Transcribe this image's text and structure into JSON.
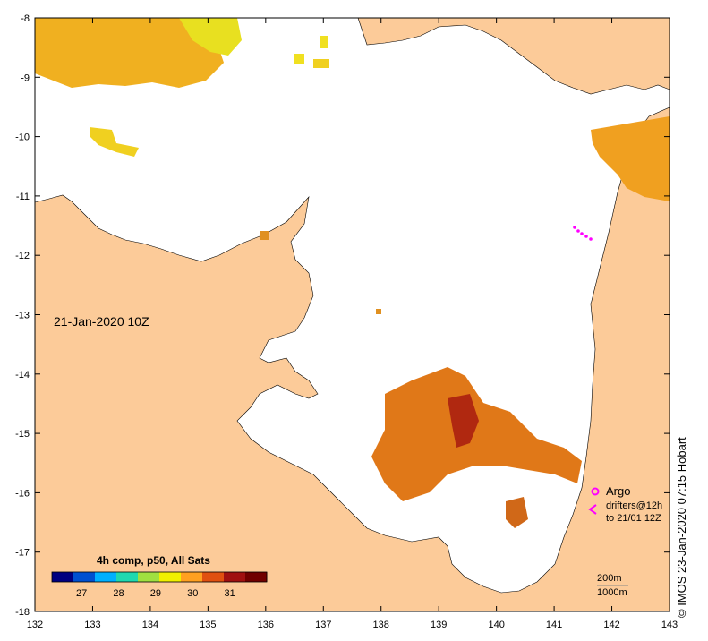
{
  "map": {
    "date_label": "21-Jan-2020 10Z",
    "lon_ticks": [
      "132",
      "133",
      "134",
      "135",
      "136",
      "137",
      "138",
      "139",
      "140",
      "141",
      "142",
      "143"
    ],
    "lat_ticks": [
      "-8",
      "-9",
      "-10",
      "-11",
      "-12",
      "-13",
      "-14",
      "-15",
      "-16",
      "-17",
      "-18"
    ],
    "lon_range": [
      132,
      143
    ],
    "lat_range": [
      -18,
      -8
    ],
    "land_color": "#fccb99",
    "water_color": "#ffffff"
  },
  "colorbar": {
    "title": "4h comp, p50, All Sats",
    "labels": [
      "27",
      "28",
      "29",
      "30",
      "31"
    ],
    "range": [
      26.2,
      32
    ],
    "colors": [
      "#000080",
      "#0050d0",
      "#00b0ff",
      "#20d8b0",
      "#a0e040",
      "#f0f000",
      "#ffa020",
      "#e05010",
      "#a01010",
      "#700000"
    ]
  },
  "legend": {
    "argo_label": "Argo",
    "drifters_label_1": "drifters@12h",
    "drifters_label_2": "to 21/01 12Z",
    "argo_color": "#ff00ff",
    "drifter_color": "#ff00ff"
  },
  "contours": {
    "label_1": "200m",
    "label_2": "1000m"
  },
  "copyright": "© IMOS 23-Jan-2020 07:15 Hobart"
}
